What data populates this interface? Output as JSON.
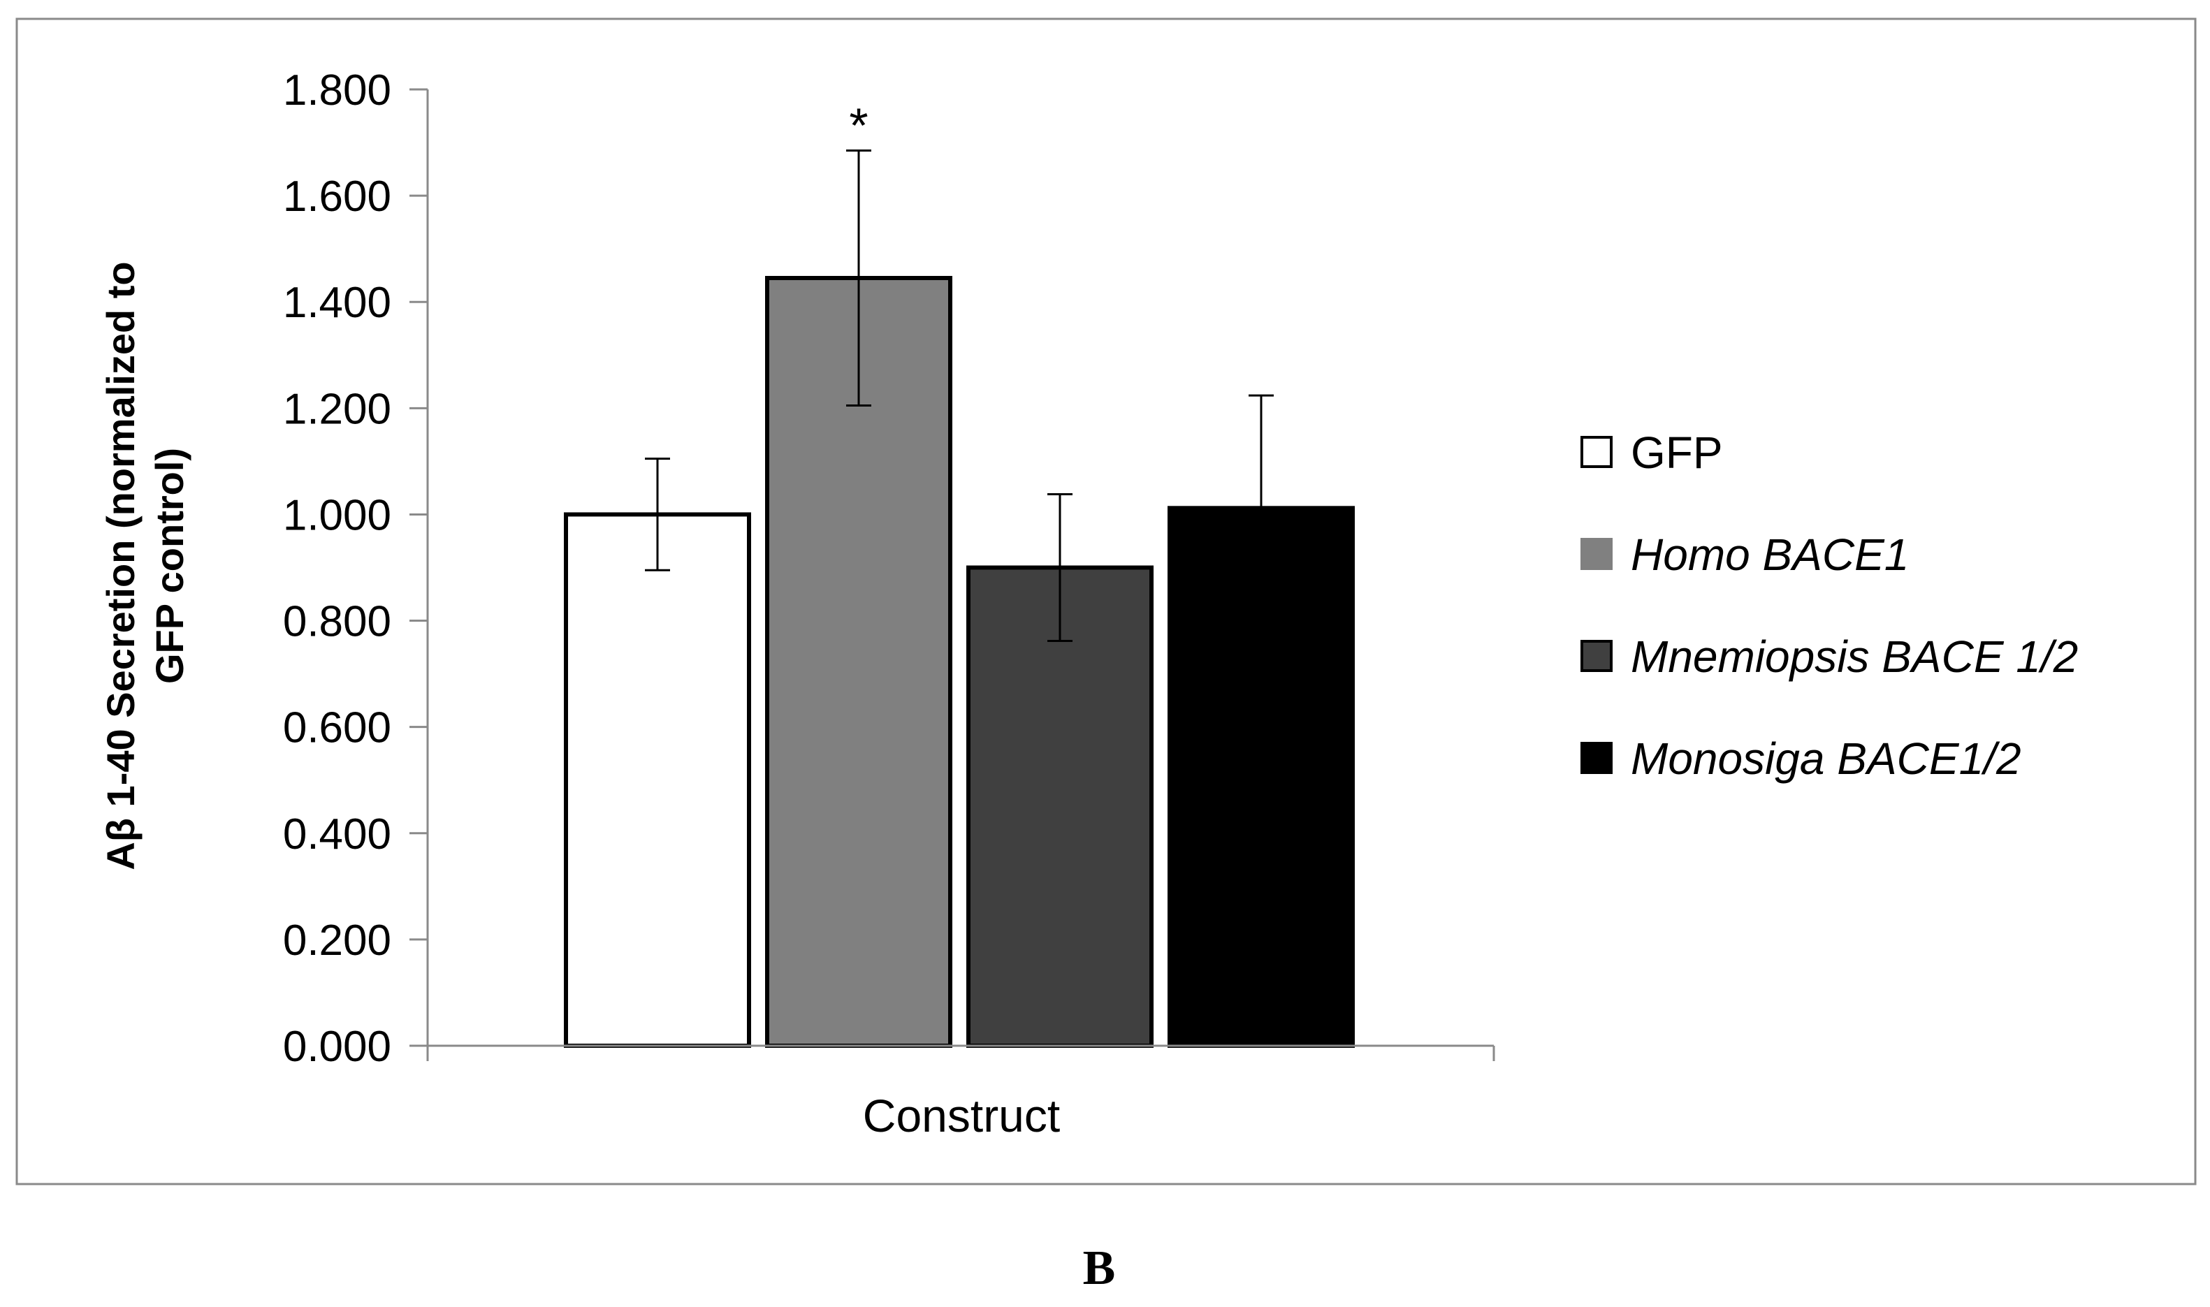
{
  "chart_data": {
    "type": "bar",
    "title": "",
    "xlabel": "Construct",
    "ylabel": "Aβ 1-40 Secretion (normalized to GFP control)",
    "ylabel_lines": [
      "Aβ 1-40 Secretion (normalized to",
      "GFP control)"
    ],
    "ylim": [
      0,
      1.8
    ],
    "yticks": [
      "0.000",
      "0.200",
      "0.400",
      "0.600",
      "0.800",
      "1.000",
      "1.200",
      "1.400",
      "1.600",
      "1.800"
    ],
    "categories": [
      "Construct"
    ],
    "series": [
      {
        "name": "GFP",
        "values": [
          1.0
        ],
        "error": [
          0.105
        ],
        "color": "#ffffff",
        "italic": false
      },
      {
        "name": "Homo BACE1",
        "values": [
          1.445
        ],
        "error": [
          0.24
        ],
        "color": "#808080",
        "italic": true
      },
      {
        "name": "Mnemiopsis BACE 1/2",
        "values": [
          0.9
        ],
        "error": [
          0.138
        ],
        "color": "#404040",
        "italic": true
      },
      {
        "name": "Monosiga BACE1/2",
        "values": [
          1.012
        ],
        "error": [
          0.212
        ],
        "color": "#000000",
        "italic": true
      }
    ],
    "annotations": [
      {
        "text": "*",
        "series": "Homo BACE1"
      }
    ],
    "grid": false,
    "legend_position": "right"
  },
  "panel_label": "B"
}
